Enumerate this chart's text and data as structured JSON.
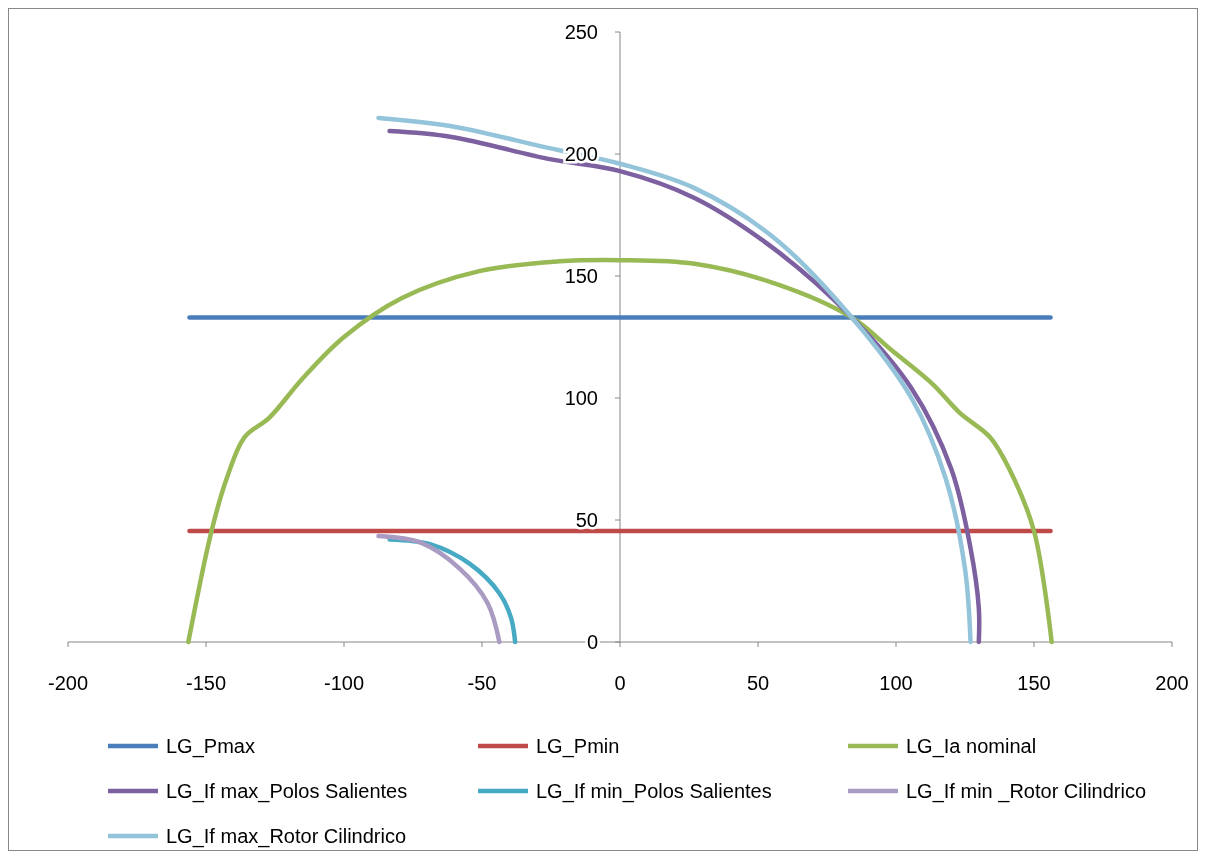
{
  "chart_data": {
    "type": "line",
    "xlim": [
      -200,
      200
    ],
    "xticks": [
      -200,
      -150,
      -100,
      -50,
      0,
      50,
      100,
      150,
      200
    ],
    "ylim": [
      0,
      250
    ],
    "yticks": [
      0,
      50,
      100,
      150,
      200,
      250
    ],
    "grid": false,
    "legend": "bottom",
    "marker": "none",
    "line_style": "solid",
    "series": [
      {
        "name": "LG_Pmax",
        "color": "#4a7ebb",
        "x": [
          -156,
          156
        ],
        "values": [
          133,
          133
        ]
      },
      {
        "name": "LG_Pmin",
        "color": "#be4b48",
        "x": [
          -156,
          156
        ],
        "values": [
          45.5,
          45.5
        ]
      },
      {
        "name": "LG_Ia nominal",
        "color": "#98b954",
        "x": [
          -156.4,
          -148,
          -142.5,
          -136,
          -127,
          -115,
          -100,
          -79,
          -51,
          -22,
          0,
          27,
          56,
          84,
          98,
          113,
          123,
          134,
          141,
          150,
          156.4
        ],
        "values": [
          0,
          45.5,
          67,
          84,
          92,
          108,
          125,
          141,
          152,
          156,
          156.5,
          155,
          147,
          133,
          120,
          106,
          94,
          84,
          71,
          45.5,
          0
        ]
      },
      {
        "name": "LG_If max_Polos Salientes",
        "color": "#7d60a0",
        "x": [
          -83.5,
          -61,
          -26,
          0,
          27,
          56,
          84,
          105.6,
          120,
          127,
          130,
          130
        ],
        "values": [
          209.4,
          207,
          198,
          193,
          182,
          161,
          133,
          104,
          71,
          38.5,
          14,
          0
        ]
      },
      {
        "name": "LG_If min_Polos Salientes",
        "color": "#46aac5",
        "x": [
          -83.5,
          -68.6,
          -54.4,
          -43.7,
          -39.5,
          -38
        ],
        "values": [
          42,
          40,
          32,
          20,
          10,
          0
        ]
      },
      {
        "name": "LG_If min _Rotor Cilindrico",
        "color": "#a99bc2",
        "x": [
          -87.5,
          -72,
          -58,
          -48,
          -43.7
        ],
        "values": [
          43.4,
          40.6,
          30,
          16,
          0
        ]
      },
      {
        "name": "LG_If max_Rotor Cilindrico",
        "color": "#93c4da",
        "x": [
          -87.5,
          -61.5,
          -26,
          0,
          27,
          56,
          84,
          105.6,
          118,
          125,
          127
        ],
        "values": [
          214.8,
          211.5,
          202.5,
          196,
          186,
          165.5,
          133,
          100,
          67,
          30,
          0
        ]
      }
    ]
  }
}
